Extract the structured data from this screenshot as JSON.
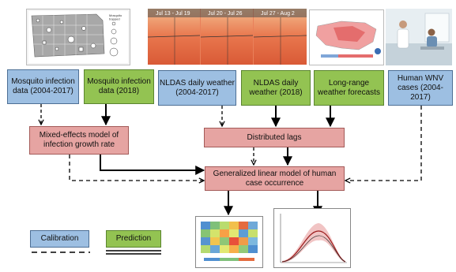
{
  "images": {
    "map_legend_header": "Mosquito\ntrapped",
    "weather_weeks": [
      "Jul 13 - Jul 19",
      "Jul 20 - Jul 26",
      "Jul 27 - Aug 2"
    ]
  },
  "inputs": {
    "mosquito_calibration": "Mosquito infection data (2004-2017)",
    "mosquito_prediction": "Mosquito infection data (2018)",
    "nldas_calibration": "NLDAS daily weather (2004-2017)",
    "nldas_prediction": "NLDAS daily weather (2018)",
    "forecasts": "Long-range weather forecasts",
    "human_cases": "Human WNV cases (2004-2017)"
  },
  "models": {
    "mixed_effects": "Mixed-effects model of infection growth rate",
    "distributed_lags": "Distributed lags",
    "glm": "Generalized linear model of human case occurrence"
  },
  "legend": {
    "calibration": "Calibration",
    "prediction": "Prediction"
  },
  "colors": {
    "calibration": "#9dbfe2",
    "prediction": "#93c352",
    "model": "#e6a4a2"
  }
}
